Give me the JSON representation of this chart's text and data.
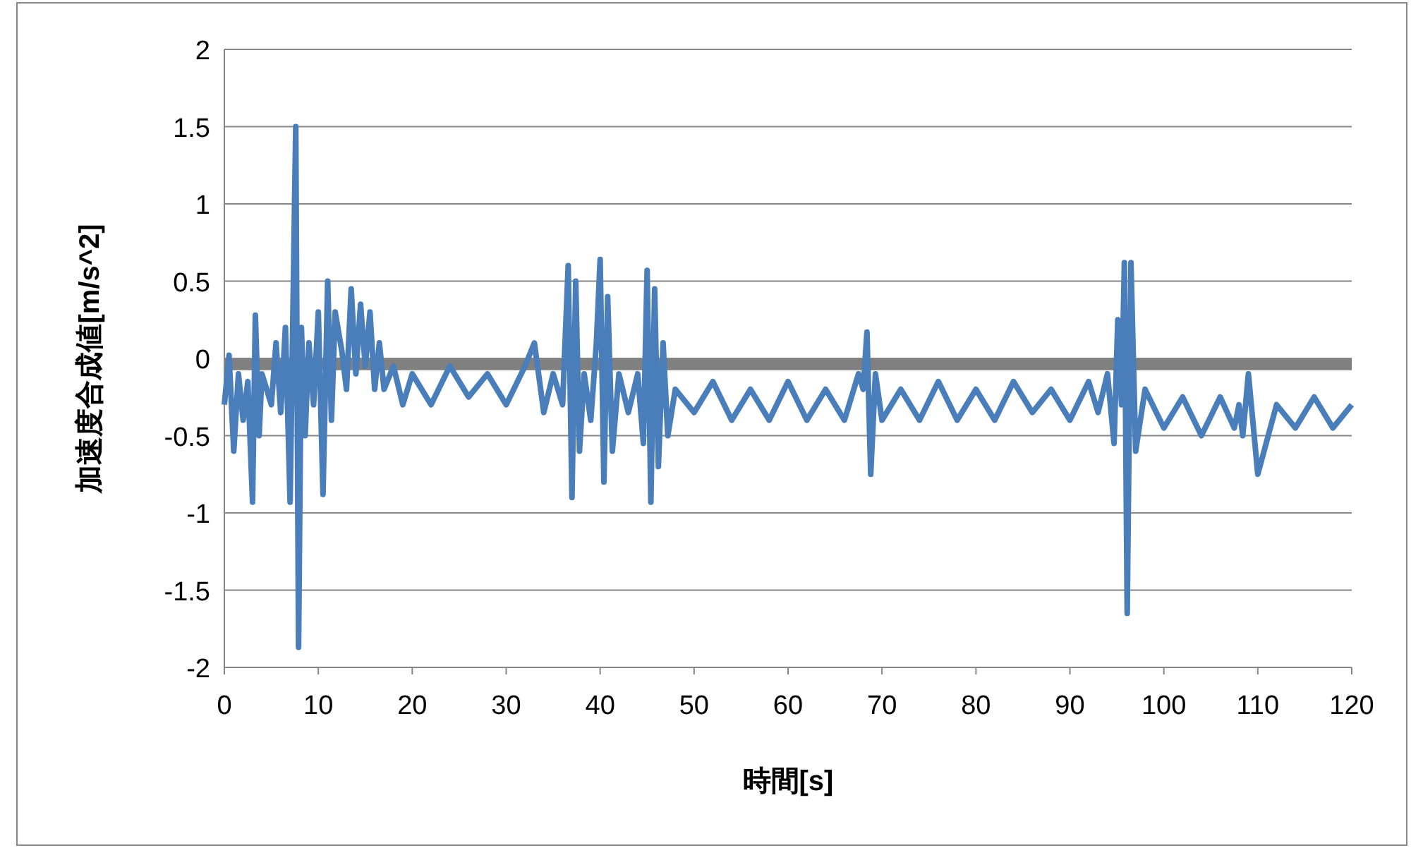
{
  "chart_data": {
    "type": "line",
    "xlabel": "時間[s]",
    "ylabel": "加速度合成値[m/s^2]",
    "xlim": [
      0,
      120
    ],
    "xticks": [
      0,
      10,
      20,
      30,
      40,
      50,
      60,
      70,
      80,
      90,
      100,
      110,
      120
    ],
    "ylim": [
      -2,
      2
    ],
    "yticks": [
      -2,
      -1.5,
      -1,
      -0.5,
      0,
      0.5,
      1,
      1.5,
      2
    ],
    "grid": "y",
    "marker": "none",
    "line_style": "solid",
    "ref_lines": [
      {
        "axis": "y",
        "value": -0.04,
        "color": "#808080"
      }
    ],
    "series": [
      {
        "color": "#4a7ebb",
        "x": [
          0,
          0.5,
          1,
          1.5,
          2,
          2.5,
          3,
          3.3,
          3.7,
          4,
          5,
          5.5,
          6,
          6.5,
          7,
          7.3,
          7.6,
          7.9,
          8.2,
          8.6,
          9,
          9.5,
          10,
          10.5,
          11,
          11.4,
          11.8,
          12.5,
          13,
          13.5,
          14,
          14.5,
          15,
          15.5,
          16,
          16.5,
          17,
          18,
          19,
          20,
          22,
          24,
          26,
          28,
          30,
          32,
          33,
          34,
          35,
          36,
          36.6,
          37,
          37.4,
          37.8,
          38.3,
          39,
          39.6,
          40,
          40.4,
          40.8,
          41.3,
          42,
          43,
          44,
          44.6,
          45,
          45.4,
          45.8,
          46.2,
          46.7,
          47.2,
          48,
          50,
          52,
          54,
          56,
          58,
          60,
          62,
          64,
          66,
          67.5,
          68,
          68.4,
          68.8,
          69.3,
          70,
          72,
          74,
          76,
          78,
          80,
          82,
          84,
          86,
          88,
          90,
          92,
          93,
          94,
          94.7,
          95.1,
          95.5,
          95.8,
          96.1,
          96.5,
          97,
          98,
          100,
          102,
          104,
          106,
          107.5,
          108,
          108.4,
          109,
          110,
          112,
          114,
          116,
          118,
          120
        ],
        "values": [
          -0.3,
          0.02,
          -0.6,
          -0.1,
          -0.4,
          -0.15,
          -0.93,
          0.28,
          -0.5,
          -0.1,
          -0.3,
          0.1,
          -0.35,
          0.2,
          -0.93,
          0.3,
          1.5,
          -1.87,
          0.2,
          -0.5,
          0.1,
          -0.3,
          0.3,
          -0.88,
          0.5,
          -0.4,
          0.3,
          0.05,
          -0.2,
          0.45,
          -0.1,
          0.35,
          -0.05,
          0.3,
          -0.2,
          0.1,
          -0.2,
          -0.05,
          -0.3,
          -0.1,
          -0.3,
          -0.05,
          -0.25,
          -0.1,
          -0.3,
          -0.05,
          0.1,
          -0.35,
          -0.1,
          -0.3,
          0.6,
          -0.9,
          0.5,
          -0.6,
          -0.1,
          -0.4,
          0.1,
          0.64,
          -0.8,
          0.4,
          -0.6,
          -0.1,
          -0.35,
          -0.1,
          -0.55,
          0.57,
          -0.93,
          0.45,
          -0.7,
          0.1,
          -0.5,
          -0.2,
          -0.35,
          -0.15,
          -0.4,
          -0.2,
          -0.4,
          -0.15,
          -0.4,
          -0.2,
          -0.4,
          -0.1,
          -0.2,
          0.17,
          -0.75,
          -0.1,
          -0.4,
          -0.2,
          -0.4,
          -0.15,
          -0.4,
          -0.2,
          -0.4,
          -0.15,
          -0.35,
          -0.2,
          -0.4,
          -0.15,
          -0.35,
          -0.1,
          -0.55,
          0.25,
          -0.3,
          0.62,
          -1.65,
          0.62,
          -0.6,
          -0.2,
          -0.45,
          -0.25,
          -0.5,
          -0.25,
          -0.45,
          -0.3,
          -0.5,
          -0.1,
          -0.75,
          -0.3,
          -0.45,
          -0.25,
          -0.45,
          -0.3
        ]
      }
    ]
  }
}
